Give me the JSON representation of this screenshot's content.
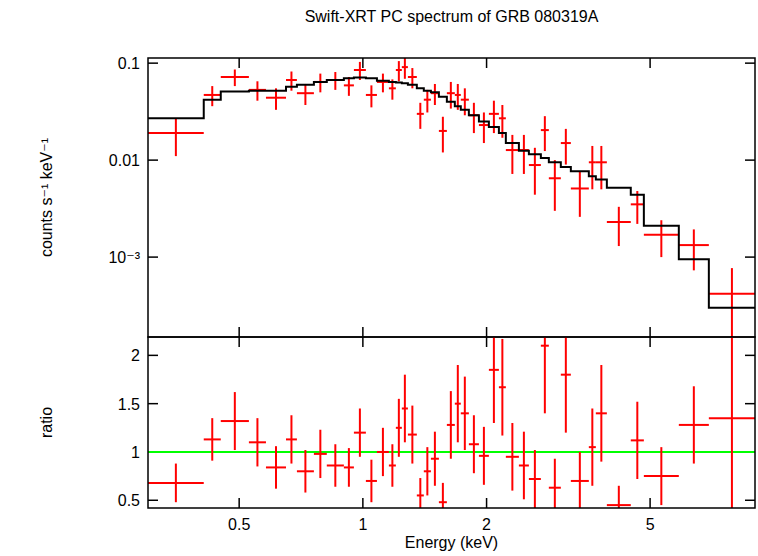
{
  "chart_data": [
    {
      "type": "errorbar",
      "title": "Swift-XRT PC spectrum of GRB 080319A",
      "y_label": "counts s⁻¹ keV⁻¹",
      "log": true,
      "tick_labels": "y",
      "xlim": [
        0.3,
        9
      ],
      "xticks": [
        0.5,
        1,
        2,
        5
      ],
      "ylim": [
        0.00015,
        0.113
      ],
      "yticks": [
        0.1,
        0.01,
        {
          "value": 0.001,
          "label": "10⁻³"
        }
      ],
      "bins": [
        0.3,
        0.41,
        0.451,
        0.528,
        0.581,
        0.65,
        0.691,
        0.76,
        0.817,
        0.899,
        0.951,
        1.017,
        1.082,
        1.157,
        1.203,
        1.244,
        1.287,
        1.353,
        1.407,
        1.464,
        1.531,
        1.601,
        1.674,
        1.731,
        1.811,
        1.916,
        2.026,
        2.143,
        2.228,
        2.397,
        2.535,
        2.711,
        2.835,
        3.032,
        3.207,
        3.547,
        3.689,
        3.924,
        4.487,
        4.828,
        5.873,
        6.949,
        9
      ],
      "series": [
        {
          "type": "errorbar",
          "color": "#ff0000",
          "values": [
            0.019,
            0.047,
            0.072,
            0.053,
            0.044,
            0.067,
            0.049,
            0.064,
            0.067,
            0.059,
            0.085,
            0.047,
            0.064,
            0.055,
            0.085,
            0.091,
            0.072,
            0.03,
            0.042,
            0.049,
            0.02,
            0.049,
            0.047,
            0.042,
            0.029,
            0.023,
            0.03,
            0.027,
            0.0127,
            0.0127,
            0.0089,
            0.0204,
            0.0065,
            0.015,
            0.0051,
            0.0095,
            0.0095,
            0.0023,
            0.0035,
            0.0017,
            0.00133,
            0.00042
          ],
          "errors": [
            0.008,
            0.011,
            0.014,
            0.012,
            0.011,
            0.015,
            0.012,
            0.014,
            0.014,
            0.013,
            0.018,
            0.012,
            0.014,
            0.013,
            0.02,
            0.022,
            0.017,
            0.009,
            0.011,
            0.012,
            0.008,
            0.015,
            0.014,
            0.013,
            0.01,
            0.008,
            0.011,
            0.01,
            0.0055,
            0.0055,
            0.0045,
            0.008,
            0.0035,
            0.006,
            0.0025,
            0.0045,
            0.0045,
            0.001,
            0.0013,
            0.0007,
            0.0006,
            0.00035
          ]
        },
        {
          "type": "step",
          "color": "#000000",
          "values": [
            0.027,
            0.042,
            0.051,
            0.052,
            0.052,
            0.057,
            0.06,
            0.064,
            0.067,
            0.07,
            0.071,
            0.07,
            0.066,
            0.064,
            0.063,
            0.062,
            0.06,
            0.055,
            0.052,
            0.05,
            0.045,
            0.04,
            0.036,
            0.033,
            0.029,
            0.025,
            0.022,
            0.019,
            0.015,
            0.0125,
            0.0115,
            0.0105,
            0.0095,
            0.0085,
            0.0077,
            0.0068,
            0.0063,
            0.0052,
            0.0044,
            0.0021,
            0.00095,
            0.0003
          ]
        }
      ]
    },
    {
      "type": "errorbar",
      "x_label": "Energy (keV)",
      "y_label": "ratio",
      "log": "x",
      "xlim": [
        0.3,
        9
      ],
      "xticks": [
        0.5,
        1,
        2,
        5
      ],
      "ylim": [
        0.42,
        2.19
      ],
      "yticks": [
        0.5,
        1,
        1.5,
        2
      ],
      "bins": [
        0.3,
        0.41,
        0.451,
        0.528,
        0.581,
        0.65,
        0.691,
        0.76,
        0.817,
        0.899,
        0.951,
        1.017,
        1.082,
        1.157,
        1.203,
        1.244,
        1.287,
        1.353,
        1.407,
        1.464,
        1.531,
        1.601,
        1.674,
        1.731,
        1.811,
        1.916,
        2.026,
        2.143,
        2.228,
        2.397,
        2.535,
        2.711,
        2.835,
        3.032,
        3.207,
        3.547,
        3.689,
        3.924,
        4.487,
        4.828,
        5.873,
        6.949,
        9
      ],
      "series": [
        {
          "type": "hline",
          "color": "#00ff00",
          "values": [
            1
          ]
        },
        {
          "type": "errorbar",
          "color": "#ff0000",
          "values": [
            0.68,
            1.13,
            1.32,
            1.1,
            0.84,
            1.13,
            0.8,
            0.98,
            0.86,
            0.84,
            1.2,
            0.7,
            1.0,
            0.86,
            1.25,
            1.45,
            1.18,
            0.55,
            0.8,
            0.93,
            0.48,
            1.28,
            1.5,
            1.4,
            1.08,
            0.96,
            1.85,
            1.67,
            0.95,
            0.86,
            0.72,
            2.1,
            0.63,
            1.8,
            0.7,
            1.05,
            1.4,
            0.45,
            1.12,
            0.75,
            1.28,
            1.35
          ],
          "errors": [
            0.2,
            0.22,
            0.3,
            0.25,
            0.22,
            0.25,
            0.22,
            0.25,
            0.22,
            0.2,
            0.25,
            0.22,
            0.25,
            0.22,
            0.3,
            0.35,
            0.3,
            0.18,
            0.25,
            0.28,
            0.2,
            0.35,
            0.4,
            0.38,
            0.3,
            0.3,
            0.55,
            0.5,
            0.35,
            0.35,
            0.3,
            0.7,
            0.3,
            0.6,
            0.3,
            0.4,
            0.5,
            0.2,
            0.4,
            0.3,
            0.4,
            1.0
          ]
        }
      ]
    }
  ]
}
